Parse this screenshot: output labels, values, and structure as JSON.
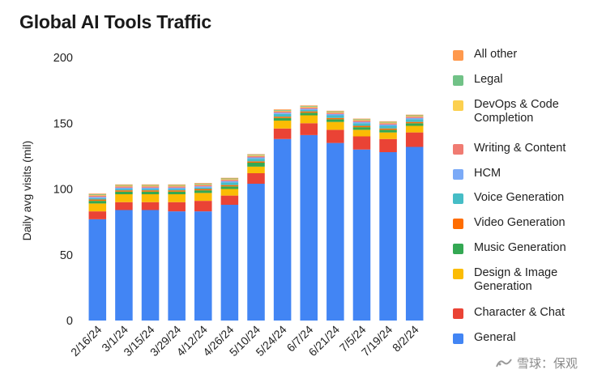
{
  "title": "Global AI Tools Traffic",
  "watermark": "雪球：保观",
  "chart_data": {
    "type": "bar",
    "stacked": true,
    "title": "Global AI Tools Traffic",
    "ylabel": "Daily avg visits (mil)",
    "xlabel": "",
    "ylim": [
      0,
      200
    ],
    "yticks": [
      0,
      50,
      100,
      150,
      200
    ],
    "grid": false,
    "legend_position": "right",
    "categories": [
      "2/16/24",
      "3/1/24",
      "3/15/24",
      "3/29/24",
      "4/12/24",
      "4/26/24",
      "5/10/24",
      "5/24/24",
      "6/7/24",
      "6/21/24",
      "7/5/24",
      "7/19/24",
      "8/2/24"
    ],
    "series": [
      {
        "name": "General",
        "color": "#4285f4",
        "values": [
          77,
          84,
          84,
          83,
          83,
          88,
          104,
          138,
          141,
          135,
          130,
          128,
          132
        ]
      },
      {
        "name": "Character & Chat",
        "color": "#ea4335",
        "values": [
          6,
          6,
          6,
          7,
          8,
          7,
          8,
          8,
          9,
          10,
          10,
          10,
          11
        ]
      },
      {
        "name": "Design & Image Generation",
        "color": "#fbbc04",
        "values": [
          6,
          6,
          6,
          6,
          6,
          5,
          5,
          6,
          6,
          6,
          5,
          5,
          5
        ]
      },
      {
        "name": "Music Generation",
        "color": "#34a853",
        "values": [
          2,
          2,
          2,
          2,
          2,
          2,
          3,
          2,
          2,
          2,
          2,
          2,
          2
        ]
      },
      {
        "name": "Video Generation",
        "color": "#ff6d01",
        "values": [
          1,
          1,
          1,
          1,
          1,
          1,
          1,
          1,
          1,
          1,
          1,
          1,
          1
        ]
      },
      {
        "name": "Voice Generation",
        "color": "#46bdc6",
        "values": [
          1,
          1,
          1,
          1,
          1,
          2,
          2,
          2,
          1,
          2,
          2,
          2,
          2
        ]
      },
      {
        "name": "HCM",
        "color": "#7baaf7",
        "values": [
          1,
          1,
          1,
          1,
          1,
          1,
          1,
          1,
          1,
          1,
          1,
          1,
          1
        ]
      },
      {
        "name": "Writing & Content",
        "color": "#f07b72",
        "values": [
          1,
          1,
          1,
          1,
          1,
          1,
          1,
          1,
          1,
          1,
          1,
          1,
          1
        ]
      },
      {
        "name": "DevOps & Code Completion",
        "color": "#fcd04f",
        "values": [
          0.5,
          0.5,
          0.5,
          0.5,
          0.5,
          0.5,
          0.5,
          0.5,
          0.5,
          0.5,
          0.5,
          0.5,
          0.5
        ]
      },
      {
        "name": "Legal",
        "color": "#71c287",
        "values": [
          0.5,
          0.5,
          0.5,
          0.5,
          0.5,
          0.5,
          0.5,
          0.5,
          0.5,
          0.5,
          0.5,
          0.5,
          0.5
        ]
      },
      {
        "name": "All other",
        "color": "#ff994d",
        "values": [
          0.5,
          0.5,
          0.5,
          0.5,
          0.5,
          0.5,
          0.5,
          0.5,
          0.5,
          0.5,
          0.5,
          0.5,
          0.5
        ]
      }
    ],
    "legend": [
      {
        "label": "All other",
        "color": "#ff994d"
      },
      {
        "label": "Legal",
        "color": "#71c287"
      },
      {
        "label": "DevOps & Code\nCompletion",
        "color": "#fcd04f"
      },
      {
        "label": "Writing & Content",
        "color": "#f07b72"
      },
      {
        "label": "HCM",
        "color": "#7baaf7"
      },
      {
        "label": "Voice Generation",
        "color": "#46bdc6"
      },
      {
        "label": "Video Generation",
        "color": "#ff6d01"
      },
      {
        "label": "Music Generation",
        "color": "#34a853"
      },
      {
        "label": "Design & Image\nGeneration",
        "color": "#fbbc04"
      },
      {
        "label": "Character & Chat",
        "color": "#ea4335"
      },
      {
        "label": "General",
        "color": "#4285f4"
      }
    ]
  }
}
